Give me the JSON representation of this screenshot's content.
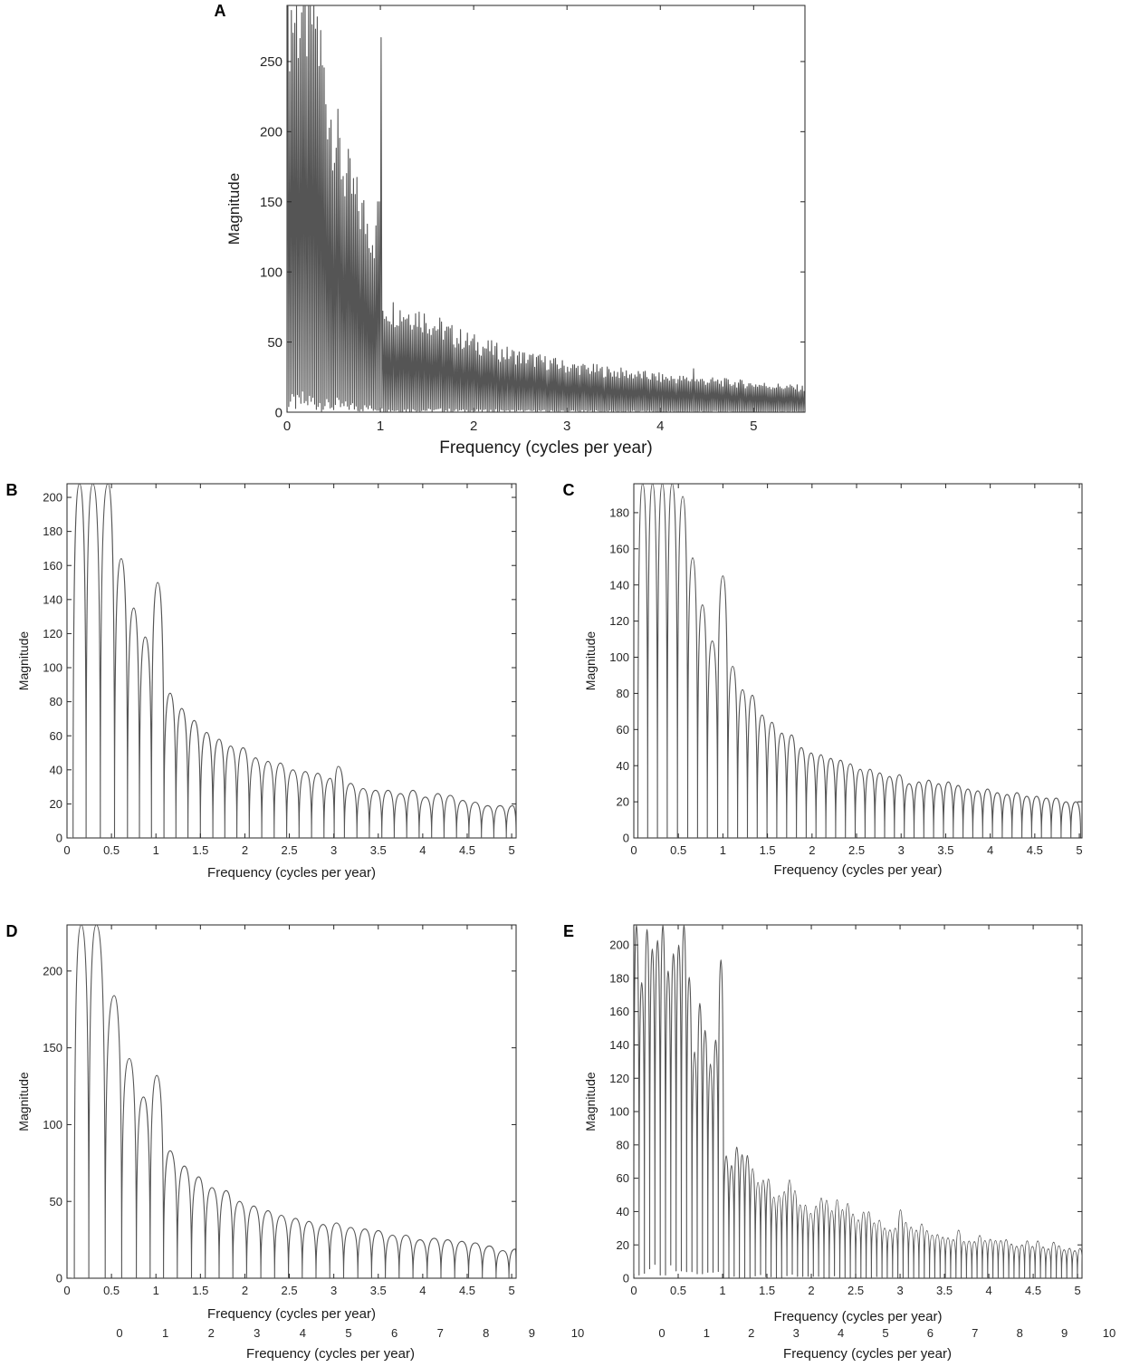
{
  "chart_data": [
    {
      "id": "A",
      "panel_label": "A",
      "type": "line",
      "xlabel": "Frequency (cycles per year)",
      "ylabel": "Magnitude",
      "xlim": [
        0,
        5.55
      ],
      "ylim": [
        0,
        290
      ],
      "xticks": [
        0,
        1,
        2,
        3,
        4,
        5
      ],
      "yticks": [
        0,
        50,
        100,
        150,
        200,
        250
      ],
      "extra_xticks": [],
      "extra_xlabel": "",
      "grid": false,
      "series": [
        {
          "line_color": "#555555",
          "lobe_spacing": 0.0185,
          "lobe_shape": "spike",
          "envelope": [
            [
              0.0,
              290
            ],
            [
              0.3,
              290
            ],
            [
              0.42,
              230
            ],
            [
              0.6,
              178
            ],
            [
              0.75,
              152
            ],
            [
              0.95,
              126
            ],
            [
              0.99,
              110
            ],
            [
              1.02,
              75
            ],
            [
              1.4,
              70
            ],
            [
              1.8,
              55
            ],
            [
              2.3,
              43
            ],
            [
              3.0,
              33
            ],
            [
              4.0,
              25
            ],
            [
              5.0,
              20
            ],
            [
              5.55,
              17
            ]
          ],
          "peaks": [
            {
              "x": 1.0,
              "y": 267
            },
            {
              "x": 0.98,
              "y": 150
            },
            {
              "x": 4.35,
              "y": 31
            }
          ]
        }
      ]
    },
    {
      "id": "B",
      "panel_label": "B",
      "type": "line",
      "xlabel": "Frequency (cycles per year)",
      "ylabel": "Magnitude",
      "xlim": [
        0,
        5.05
      ],
      "ylim": [
        0,
        208
      ],
      "xticks": [
        0,
        0.5,
        1,
        1.5,
        2,
        2.5,
        3,
        3.5,
        4,
        4.5,
        5
      ],
      "yticks": [
        0,
        20,
        40,
        60,
        80,
        100,
        120,
        140,
        160,
        180,
        200
      ],
      "extra_xticks": [],
      "extra_xlabel": "",
      "grid": false,
      "series": [
        {
          "line_color": "#555555",
          "lobe_spacing": 0.1431,
          "lobe_shape": "arch",
          "peaks": [
            {
              "x": 0.14,
              "y": 208
            },
            {
              "x": 0.29,
              "y": 208
            },
            {
              "x": 0.46,
              "y": 208
            },
            {
              "x": 0.61,
              "y": 164
            },
            {
              "x": 0.75,
              "y": 135
            },
            {
              "x": 0.88,
              "y": 118
            },
            {
              "x": 1.02,
              "y": 150
            },
            {
              "x": 1.16,
              "y": 85
            },
            {
              "x": 1.29,
              "y": 76
            },
            {
              "x": 1.43,
              "y": 69
            },
            {
              "x": 1.57,
              "y": 62
            },
            {
              "x": 1.71,
              "y": 58
            },
            {
              "x": 1.84,
              "y": 54
            },
            {
              "x": 1.98,
              "y": 53
            },
            {
              "x": 2.12,
              "y": 47
            },
            {
              "x": 2.26,
              "y": 45
            },
            {
              "x": 2.4,
              "y": 44
            },
            {
              "x": 2.54,
              "y": 40
            },
            {
              "x": 2.68,
              "y": 39
            },
            {
              "x": 2.82,
              "y": 38
            },
            {
              "x": 2.96,
              "y": 35
            },
            {
              "x": 3.05,
              "y": 42
            },
            {
              "x": 3.19,
              "y": 32
            },
            {
              "x": 3.33,
              "y": 29
            },
            {
              "x": 3.47,
              "y": 28
            },
            {
              "x": 3.61,
              "y": 28
            },
            {
              "x": 3.75,
              "y": 26
            },
            {
              "x": 3.89,
              "y": 28
            },
            {
              "x": 4.03,
              "y": 24
            },
            {
              "x": 4.17,
              "y": 26
            },
            {
              "x": 4.31,
              "y": 25
            },
            {
              "x": 4.45,
              "y": 22
            },
            {
              "x": 4.59,
              "y": 21
            },
            {
              "x": 4.73,
              "y": 19
            },
            {
              "x": 4.87,
              "y": 19
            },
            {
              "x": 5.01,
              "y": 19
            }
          ]
        }
      ]
    },
    {
      "id": "C",
      "panel_label": "C",
      "type": "line",
      "xlabel": "Frequency (cycles per year)",
      "ylabel": "Magnitude",
      "xlim": [
        0,
        5.03
      ],
      "ylim": [
        0,
        196
      ],
      "xticks": [
        0,
        0.5,
        1,
        1.5,
        2,
        2.5,
        3,
        3.5,
        4,
        4.5,
        5
      ],
      "yticks": [
        0,
        20,
        40,
        60,
        80,
        100,
        120,
        140,
        160,
        180
      ],
      "extra_xticks": [],
      "extra_xlabel": "",
      "grid": false,
      "series": [
        {
          "line_color": "#555555",
          "lobe_spacing": 0.1094,
          "lobe_shape": "arch",
          "peaks": [
            {
              "x": 0.1,
              "y": 196
            },
            {
              "x": 0.21,
              "y": 196
            },
            {
              "x": 0.32,
              "y": 196
            },
            {
              "x": 0.43,
              "y": 196
            },
            {
              "x": 0.55,
              "y": 189
            },
            {
              "x": 0.66,
              "y": 155
            },
            {
              "x": 0.77,
              "y": 129
            },
            {
              "x": 0.88,
              "y": 109
            },
            {
              "x": 1.0,
              "y": 145
            },
            {
              "x": 1.11,
              "y": 95
            },
            {
              "x": 1.22,
              "y": 82
            },
            {
              "x": 1.33,
              "y": 79
            },
            {
              "x": 1.44,
              "y": 68
            },
            {
              "x": 1.55,
              "y": 64
            },
            {
              "x": 1.66,
              "y": 58
            },
            {
              "x": 1.77,
              "y": 57
            },
            {
              "x": 1.88,
              "y": 50
            },
            {
              "x": 1.99,
              "y": 47
            },
            {
              "x": 2.1,
              "y": 46
            },
            {
              "x": 2.21,
              "y": 44
            },
            {
              "x": 2.32,
              "y": 43
            },
            {
              "x": 2.43,
              "y": 41
            },
            {
              "x": 2.54,
              "y": 38
            },
            {
              "x": 2.65,
              "y": 38
            },
            {
              "x": 2.76,
              "y": 36
            },
            {
              "x": 2.87,
              "y": 34
            },
            {
              "x": 2.98,
              "y": 35
            },
            {
              "x": 3.09,
              "y": 30
            },
            {
              "x": 3.2,
              "y": 31
            },
            {
              "x": 3.31,
              "y": 32
            },
            {
              "x": 3.42,
              "y": 30
            },
            {
              "x": 3.53,
              "y": 31
            },
            {
              "x": 3.64,
              "y": 29
            },
            {
              "x": 3.75,
              "y": 27
            },
            {
              "x": 3.86,
              "y": 26
            },
            {
              "x": 3.97,
              "y": 27
            },
            {
              "x": 4.08,
              "y": 25
            },
            {
              "x": 4.19,
              "y": 24
            },
            {
              "x": 4.3,
              "y": 25
            },
            {
              "x": 4.41,
              "y": 23
            },
            {
              "x": 4.52,
              "y": 23
            },
            {
              "x": 4.63,
              "y": 22
            },
            {
              "x": 4.74,
              "y": 22
            },
            {
              "x": 4.85,
              "y": 20
            },
            {
              "x": 4.96,
              "y": 20
            }
          ]
        }
      ]
    },
    {
      "id": "D",
      "panel_label": "D",
      "type": "line",
      "xlabel": "Frequency (cycles per year)",
      "ylabel": "Magnitude",
      "xlim": [
        0,
        5.05
      ],
      "ylim": [
        0,
        230
      ],
      "xticks": [
        0,
        0.5,
        1,
        1.5,
        2,
        2.5,
        3,
        3.5,
        4,
        4.5,
        5
      ],
      "yticks": [
        0,
        50,
        100,
        150,
        200
      ],
      "extra_xticks": [
        0,
        1,
        2,
        3,
        4,
        5,
        6,
        7,
        8,
        9,
        10
      ],
      "extra_xlabel": "Frequency (cycles per year)",
      "grid": false,
      "series": [
        {
          "line_color": "#555555",
          "lobe_spacing": 0.1558,
          "lobe_shape": "arch",
          "peaks": [
            {
              "x": 0.16,
              "y": 230
            },
            {
              "x": 0.33,
              "y": 230
            },
            {
              "x": 0.53,
              "y": 184
            },
            {
              "x": 0.7,
              "y": 143
            },
            {
              "x": 0.86,
              "y": 118
            },
            {
              "x": 1.01,
              "y": 132
            },
            {
              "x": 1.16,
              "y": 83
            },
            {
              "x": 1.32,
              "y": 73
            },
            {
              "x": 1.48,
              "y": 66
            },
            {
              "x": 1.63,
              "y": 59
            },
            {
              "x": 1.79,
              "y": 57
            },
            {
              "x": 1.94,
              "y": 50
            },
            {
              "x": 2.1,
              "y": 47
            },
            {
              "x": 2.26,
              "y": 44
            },
            {
              "x": 2.41,
              "y": 41
            },
            {
              "x": 2.57,
              "y": 39
            },
            {
              "x": 2.72,
              "y": 37
            },
            {
              "x": 2.88,
              "y": 35
            },
            {
              "x": 3.03,
              "y": 36
            },
            {
              "x": 3.19,
              "y": 33
            },
            {
              "x": 3.35,
              "y": 32
            },
            {
              "x": 3.5,
              "y": 31
            },
            {
              "x": 3.66,
              "y": 28
            },
            {
              "x": 3.81,
              "y": 28
            },
            {
              "x": 3.97,
              "y": 25
            },
            {
              "x": 4.13,
              "y": 26
            },
            {
              "x": 4.28,
              "y": 25
            },
            {
              "x": 4.44,
              "y": 24
            },
            {
              "x": 4.59,
              "y": 23
            },
            {
              "x": 4.75,
              "y": 21
            },
            {
              "x": 4.9,
              "y": 18
            },
            {
              "x": 5.04,
              "y": 19
            }
          ]
        }
      ]
    },
    {
      "id": "E",
      "panel_label": "E",
      "type": "line",
      "xlabel": "Frequency (cycles per year)",
      "ylabel": "Magnitude",
      "xlim": [
        0,
        5.05
      ],
      "ylim": [
        0,
        212
      ],
      "xticks": [
        0,
        0.5,
        1,
        1.5,
        2,
        2.5,
        3,
        3.5,
        4,
        4.5,
        5
      ],
      "yticks": [
        0,
        20,
        40,
        60,
        80,
        100,
        120,
        140,
        160,
        180,
        200
      ],
      "extra_xticks": [
        0,
        1,
        2,
        3,
        4,
        5,
        6,
        7,
        8,
        9,
        10
      ],
      "extra_xlabel": "Frequency (cycles per year)",
      "grid": false,
      "series": [
        {
          "line_color": "#555555",
          "lobe_spacing": 0.0595,
          "lobe_shape": "arch",
          "envelope": [
            [
              0.0,
              212
            ],
            [
              0.45,
              212
            ],
            [
              0.55,
              197
            ],
            [
              0.65,
              160
            ],
            [
              0.8,
              140
            ],
            [
              0.95,
              128
            ],
            [
              1.02,
              72
            ],
            [
              1.2,
              76
            ],
            [
              1.5,
              62
            ],
            [
              2.0,
              44
            ],
            [
              2.5,
              40
            ],
            [
              3.0,
              32
            ],
            [
              3.5,
              28
            ],
            [
              4.0,
              25
            ],
            [
              4.5,
              22
            ],
            [
              5.05,
              19
            ]
          ],
          "peaks": [
            {
              "x": 1.0,
              "y": 191
            },
            {
              "x": 3.0,
              "y": 41
            },
            {
              "x": 2.3,
              "y": 47
            }
          ]
        }
      ]
    }
  ]
}
